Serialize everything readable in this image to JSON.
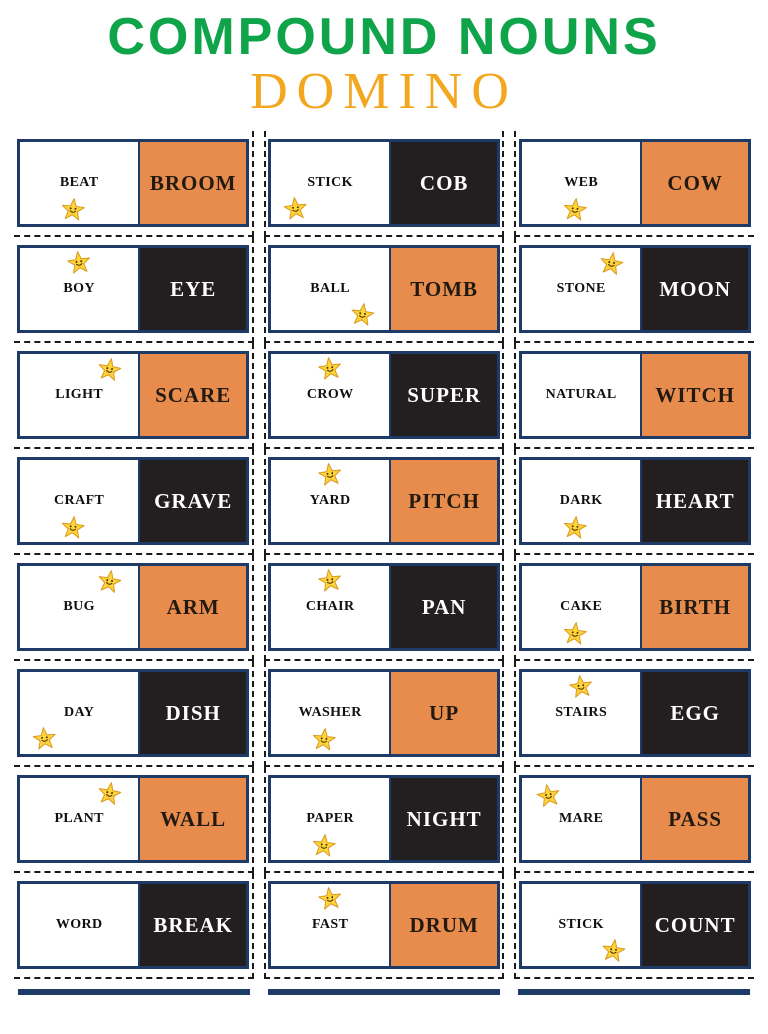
{
  "title": {
    "main": "COMPOUND NOUNS",
    "sub": "DOMINO"
  },
  "colors": {
    "title_green": "#0FA44A",
    "title_gold": "#F3A71F",
    "domino_orange": "#E78C4D",
    "domino_dark": "#231F20",
    "border_navy": "#1E3B67",
    "star_yellow": "#FFD43B"
  },
  "icons": {
    "star": "smiley-star-icon"
  },
  "dominoes": [
    {
      "left": "BEAT",
      "right": "BROOM",
      "color": "orange",
      "star": "below"
    },
    {
      "left": "STICK",
      "right": "COB",
      "color": "dark",
      "star": "below-left"
    },
    {
      "left": "WEB",
      "right": "COW",
      "color": "orange",
      "star": "below"
    },
    {
      "left": "BOY",
      "right": "EYE",
      "color": "dark",
      "star": "above"
    },
    {
      "left": "BALL",
      "right": "TOMB",
      "color": "orange",
      "star": "below-right"
    },
    {
      "left": "STONE",
      "right": "MOON",
      "color": "dark",
      "star": "above-right"
    },
    {
      "left": "LIGHT",
      "right": "SCARE",
      "color": "orange",
      "star": "above-right"
    },
    {
      "left": "CROW",
      "right": "SUPER",
      "color": "dark",
      "star": "above"
    },
    {
      "left": "NATURAL",
      "right": "WITCH",
      "color": "orange",
      "star": null
    },
    {
      "left": "CRAFT",
      "right": "GRAVE",
      "color": "dark",
      "star": "below"
    },
    {
      "left": "YARD",
      "right": "PITCH",
      "color": "orange",
      "star": "above"
    },
    {
      "left": "DARK",
      "right": "HEART",
      "color": "dark",
      "star": "below"
    },
    {
      "left": "BUG",
      "right": "ARM",
      "color": "orange",
      "star": "above-right"
    },
    {
      "left": "CHAIR",
      "right": "PAN",
      "color": "dark",
      "star": "above"
    },
    {
      "left": "CAKE",
      "right": "BIRTH",
      "color": "orange",
      "star": "below"
    },
    {
      "left": "DAY",
      "right": "DISH",
      "color": "dark",
      "star": "below-left"
    },
    {
      "left": "WASHER",
      "right": "UP",
      "color": "orange",
      "star": "below"
    },
    {
      "left": "STAIRS",
      "right": "EGG",
      "color": "dark",
      "star": "above"
    },
    {
      "left": "PLANT",
      "right": "WALL",
      "color": "orange",
      "star": "above-right"
    },
    {
      "left": "PAPER",
      "right": "NIGHT",
      "color": "dark",
      "star": "below"
    },
    {
      "left": "MARE",
      "right": "PASS",
      "color": "orange",
      "star": "above-left"
    },
    {
      "left": "WORD",
      "right": "BREAK",
      "color": "dark",
      "star": null
    },
    {
      "left": "FAST",
      "right": "DRUM",
      "color": "orange",
      "star": "above"
    },
    {
      "left": "STICK",
      "right": "COUNT",
      "color": "dark",
      "star": "below-right"
    }
  ]
}
